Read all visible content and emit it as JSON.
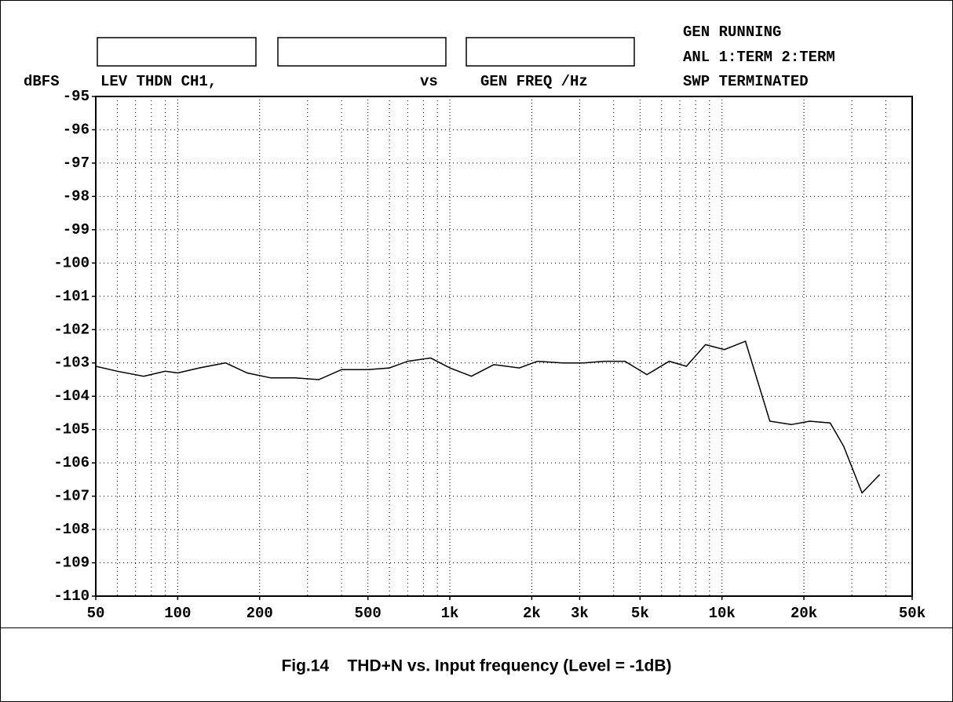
{
  "chart_data": {
    "type": "line",
    "y_unit": "dBFS",
    "header": {
      "measure": "LEV THDN CH1,",
      "vs": "vs",
      "sweep": "GEN FREQ /Hz"
    },
    "status": [
      "GEN RUNNING",
      "ANL 1:TERM 2:TERM",
      "SWP TERMINATED"
    ],
    "caption": "Fig.14    THD+N vs. Input frequency (Level = -1dB)",
    "x": [
      50,
      60,
      75,
      90,
      100,
      120,
      150,
      180,
      220,
      270,
      330,
      400,
      500,
      600,
      700,
      850,
      1000,
      1200,
      1450,
      1800,
      2100,
      2600,
      3100,
      3700,
      4400,
      5300,
      6400,
      7400,
      8700,
      10200,
      12200,
      15000,
      18000,
      21000,
      25000,
      28000,
      32700,
      38000
    ],
    "series": [
      {
        "color": "#000000",
        "values": [
          -103.1,
          -103.25,
          -103.4,
          -103.25,
          -103.3,
          -103.15,
          -103.0,
          -103.3,
          -103.45,
          -103.45,
          -103.5,
          -103.2,
          -103.2,
          -103.15,
          -102.95,
          -102.85,
          -103.15,
          -103.4,
          -103.05,
          -103.15,
          -102.95,
          -103.0,
          -103.0,
          -102.95,
          -102.95,
          -103.35,
          -102.95,
          -103.1,
          -102.45,
          -102.6,
          -102.35,
          -104.75,
          -104.85,
          -104.75,
          -104.8,
          -105.5,
          -106.9,
          -106.35
        ]
      }
    ],
    "xscale": "log",
    "xlim": [
      50,
      50000
    ],
    "xticks": [
      50,
      100,
      200,
      500,
      {
        "value": 1000,
        "label": "1k"
      },
      {
        "value": 2000,
        "label": "2k"
      },
      {
        "value": 3000,
        "label": "3k"
      },
      {
        "value": 5000,
        "label": "5k"
      },
      {
        "value": 10000,
        "label": "10k"
      },
      {
        "value": 20000,
        "label": "20k"
      },
      {
        "value": 50000,
        "label": "50k"
      }
    ],
    "xminor": [
      60,
      70,
      80,
      90,
      300,
      400,
      600,
      700,
      800,
      900,
      4000,
      6000,
      7000,
      8000,
      9000,
      30000,
      40000
    ],
    "ylim": [
      -110,
      -95
    ],
    "yticks": [
      -95,
      -96,
      -97,
      -98,
      -99,
      -100,
      -101,
      -102,
      -103,
      -104,
      -105,
      -106,
      -107,
      -108,
      -109,
      -110
    ],
    "grid": true
  }
}
